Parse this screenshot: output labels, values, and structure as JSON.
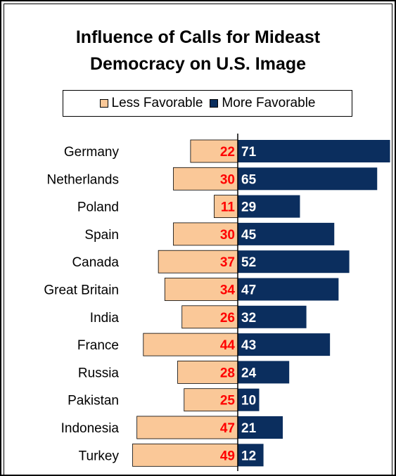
{
  "title_line1": "Influence of Calls for Mideast",
  "title_line2": "Democracy on U.S. Image",
  "legend": {
    "less_label": "Less Favorable",
    "more_label": "More Favorable"
  },
  "colors": {
    "less": "#FAC898",
    "more": "#0B2E5E",
    "less_value_text": "#FF0000",
    "more_value_text": "#FFFFFF"
  },
  "chart_data": {
    "type": "bar",
    "orientation": "horizontal-diverging",
    "title": "Influence of Calls for Mideast Democracy on U.S. Image",
    "categories": [
      "Germany",
      "Netherlands",
      "Poland",
      "Spain",
      "Canada",
      "Great Britain",
      "India",
      "France",
      "Russia",
      "Pakistan",
      "Indonesia",
      "Turkey"
    ],
    "series": [
      {
        "name": "Less Favorable",
        "values": [
          22,
          30,
          11,
          30,
          37,
          34,
          26,
          44,
          28,
          25,
          47,
          49
        ]
      },
      {
        "name": "More Favorable",
        "values": [
          71,
          65,
          29,
          45,
          52,
          47,
          32,
          43,
          24,
          10,
          21,
          12
        ]
      }
    ],
    "legend_position": "top",
    "grid": false,
    "data_labels": true
  }
}
